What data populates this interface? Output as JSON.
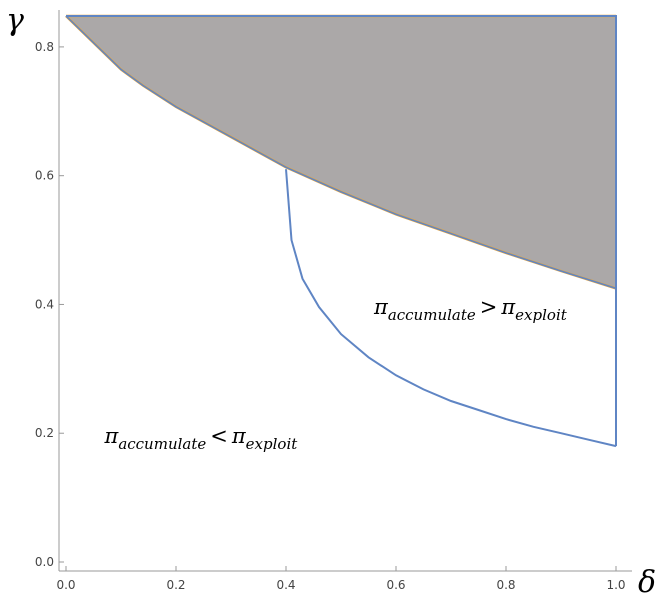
{
  "chart_data": {
    "type": "area",
    "xlabel": "δ",
    "ylabel": "γ",
    "xlim": [
      0,
      1
    ],
    "ylim": [
      -0.01,
      0.85
    ],
    "xticks": [
      "0.0",
      "0.2",
      "0.4",
      "0.6",
      "0.8",
      "1.0"
    ],
    "yticks": [
      "0.0",
      "0.2",
      "0.4",
      "0.6",
      "0.8"
    ],
    "grid": false,
    "colors": {
      "region_fill": "#aba8a8",
      "blue": "#5f85c4",
      "orange": "#e8a53a"
    },
    "series": [
      {
        "role": "orange-boundary",
        "x": [
          0.0,
          0.1,
          0.14,
          0.2,
          0.3,
          0.4,
          0.5,
          0.6,
          0.7,
          0.8,
          0.9,
          1.0
        ],
        "y": [
          0.848,
          0.765,
          0.74,
          0.707,
          0.66,
          0.613,
          0.575,
          0.54,
          0.51,
          0.48,
          0.452,
          0.425
        ]
      },
      {
        "role": "blue-lower-curve",
        "x": [
          0.4,
          0.41,
          0.43,
          0.46,
          0.5,
          0.55,
          0.6,
          0.65,
          0.7,
          0.75,
          0.8,
          0.85,
          0.9,
          0.95,
          1.0
        ],
        "y": [
          0.61,
          0.5,
          0.44,
          0.396,
          0.354,
          0.318,
          0.29,
          0.268,
          0.25,
          0.236,
          0.222,
          0.21,
          0.2,
          0.19,
          0.18
        ]
      }
    ],
    "top_line_y": 0.848,
    "annotations": {
      "upper": {
        "base1": "π",
        "sub1": "accumulate",
        "op": ">",
        "base2": "π",
        "sub2": "exploit",
        "x": 0.56,
        "y": 0.385
      },
      "lower": {
        "base1": "π",
        "sub1": "accumulate",
        "op": "<",
        "base2": "π",
        "sub2": "exploit",
        "x": 0.07,
        "y": 0.185
      }
    }
  }
}
